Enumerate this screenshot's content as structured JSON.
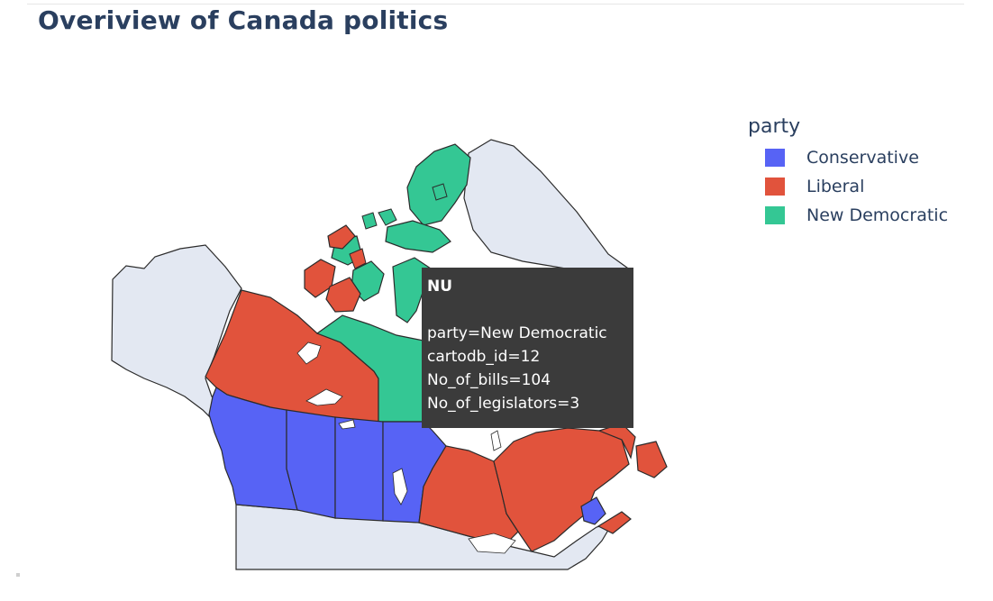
{
  "page": {
    "title": "Overiview of Canada politics"
  },
  "legend": {
    "title": "party",
    "items": [
      {
        "label": "Conservative",
        "color": "#5763f5"
      },
      {
        "label": "Liberal",
        "color": "#e1533c"
      },
      {
        "label": "New Democratic",
        "color": "#34c794"
      }
    ]
  },
  "tooltip": {
    "name": "NU",
    "lines": [
      "party=New Democratic",
      "cartodb_id=12",
      "No_of_bills=104",
      "No_of_legislators=3"
    ]
  },
  "colors": {
    "land": "#e3e8f2",
    "border": "#2b2b2b",
    "water": "#ffffff",
    "text": "#2a3f5f"
  }
}
